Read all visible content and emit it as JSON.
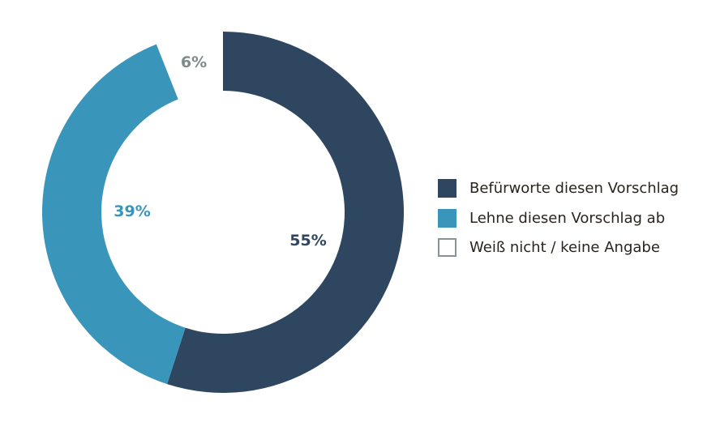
{
  "chart_data": {
    "type": "pie",
    "variant": "donut",
    "categories": [
      "Befürworte diesen Vorschlag",
      "Lehne diesen Vorschlag ab",
      "Weiß nicht / keine Angabe"
    ],
    "values": [
      55,
      39,
      6
    ],
    "data_labels": [
      "55%",
      "39%",
      "6%"
    ],
    "colors": [
      "#2f4660",
      "#3a95bb",
      "#ffffff"
    ],
    "label_colors": [
      "#2f4660",
      "#3a95bb",
      "#7f8a8c"
    ],
    "legend_border_color": "#8a9295",
    "legend_position": "right"
  }
}
